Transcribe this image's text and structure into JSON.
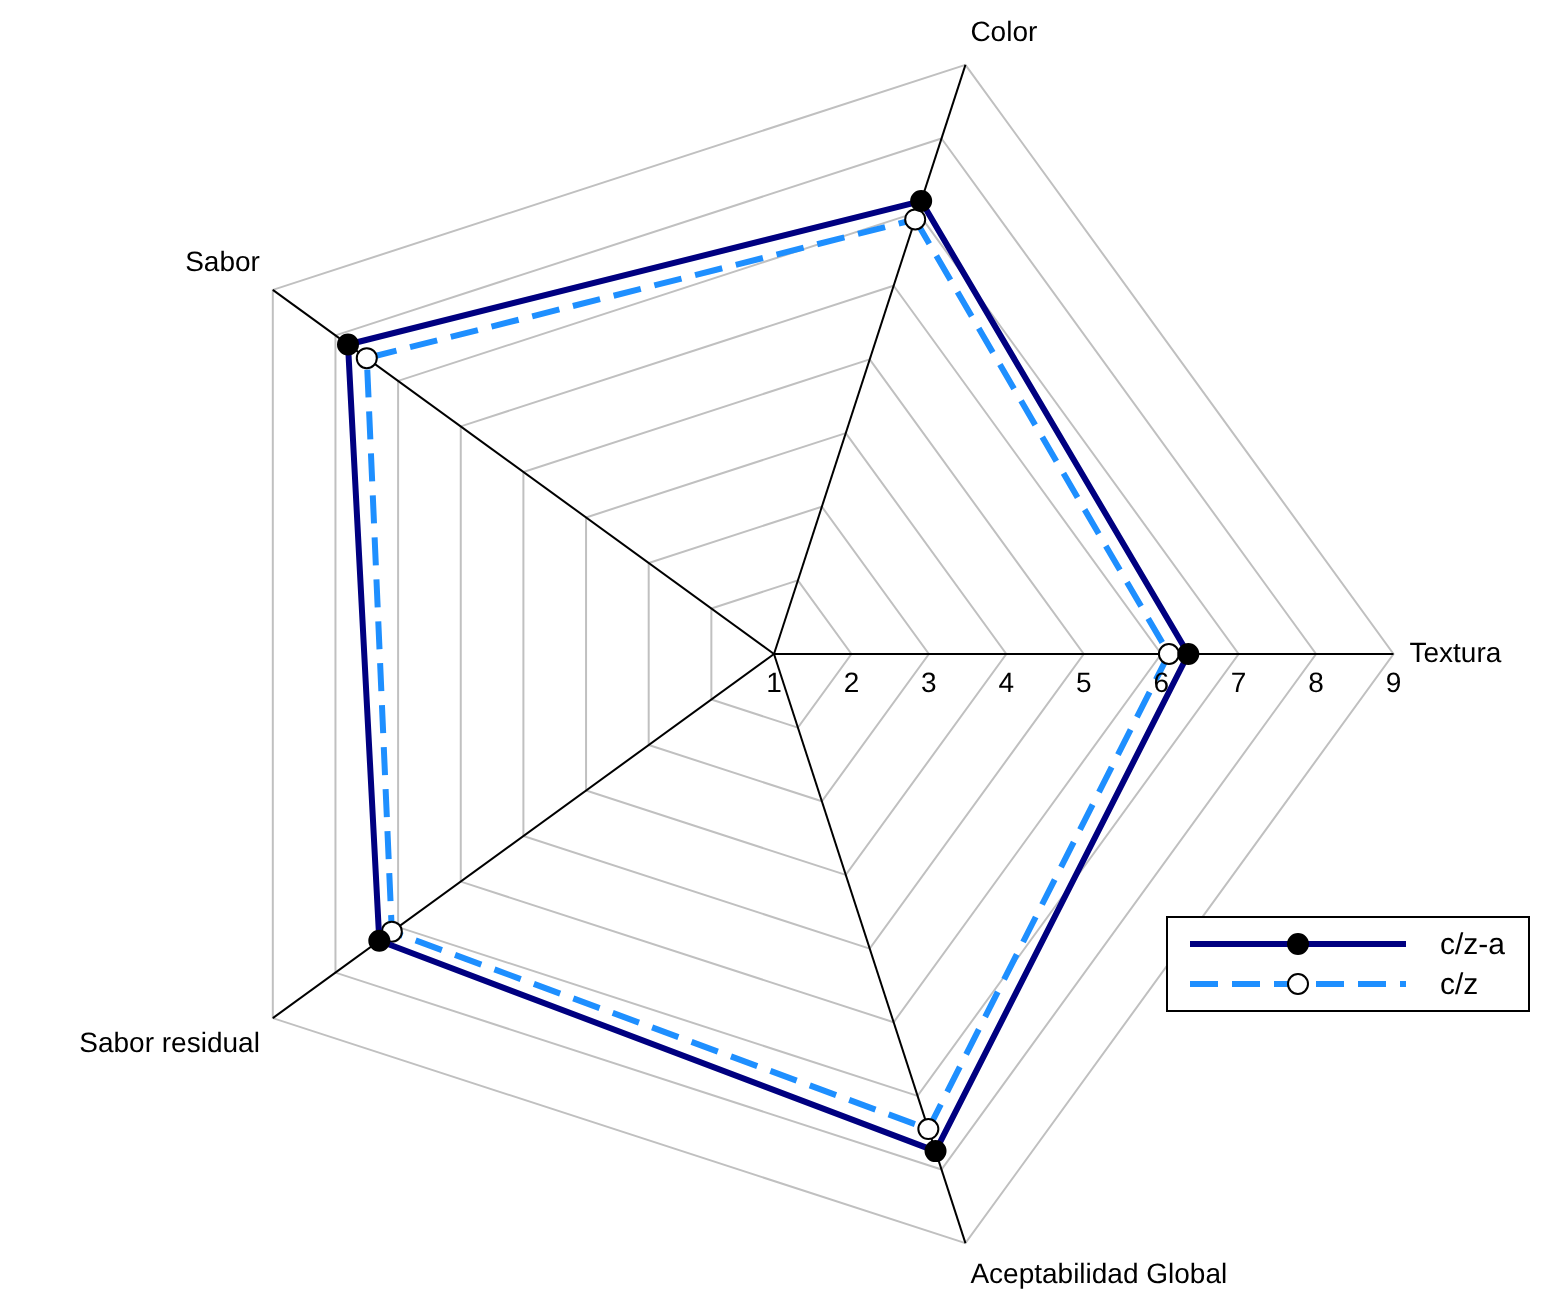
{
  "chart_data": {
    "type": "radar",
    "categories": [
      "Color",
      "Textura",
      "Aceptabilidad Global",
      "Sabor residual",
      "Sabor"
    ],
    "ylim": [
      1,
      9
    ],
    "yticks": [
      1,
      2,
      3,
      4,
      5,
      6,
      7,
      8,
      9
    ],
    "grid": true,
    "legend": "bottom right",
    "marker": "circle",
    "series": [
      {
        "name": "c/z-a",
        "color": "#000080",
        "line_style": "solid",
        "values": [
          7.15,
          6.35,
          7.75,
          7.3,
          7.8
        ]
      },
      {
        "name": "c/z",
        "color": "#1e8fff",
        "line_style": "dashed",
        "values": [
          6.9,
          6.1,
          7.45,
          7.1,
          7.5
        ]
      }
    ]
  }
}
